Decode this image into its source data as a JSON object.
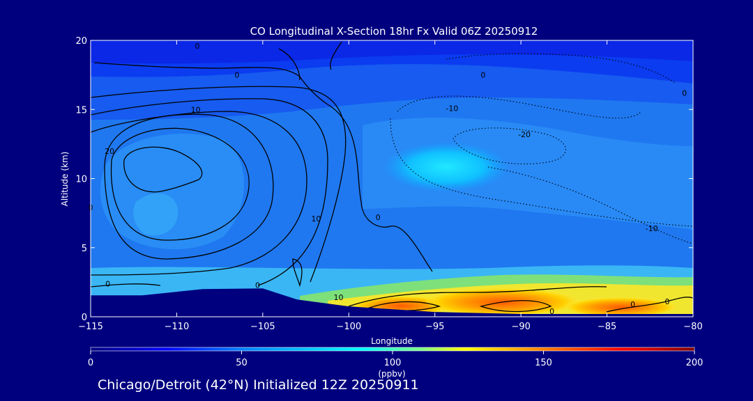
{
  "chart_data": {
    "type": "heatmap",
    "title": "CO Longitudinal X-Section 18hr  Fx Valid 06Z 20250912",
    "xlabel": "Longitude",
    "ylabel": "Altitude (km)",
    "xlim": [
      -115,
      -80
    ],
    "ylim": [
      0,
      20
    ],
    "x_ticks": [
      -115,
      -110,
      -105,
      -100,
      -95,
      -90,
      -85,
      -80
    ],
    "y_ticks": [
      0,
      5,
      10,
      15,
      20
    ],
    "x_tick_labels": [
      "−115",
      "−110",
      "−105",
      "−100",
      "−95",
      "−90",
      "−85",
      "−80"
    ],
    "y_tick_labels": [
      "0",
      "5",
      "10",
      "15",
      "20"
    ],
    "colorbar": {
      "label": "(ppbv)",
      "min": 0,
      "max": 200,
      "ticks": [
        0,
        50,
        100,
        150,
        200
      ],
      "tick_labels": [
        "0",
        "50",
        "100",
        "150",
        "200"
      ],
      "colors": [
        "#00007f",
        "#0000ff",
        "#0080ff",
        "#00ffff",
        "#80ff80",
        "#ffff00",
        "#ff8000",
        "#ff0000",
        "#800000"
      ]
    },
    "field_levels_ppbv": [
      {
        "region": "upper troposphere / stratosphere (y 17-20 km)",
        "value": 35
      },
      {
        "region": "upper troposphere (y 14-17 km)",
        "value": 45
      },
      {
        "region": "mid troposphere background",
        "value": 60
      },
      {
        "region": "western plume core (-113 to -108, 7-12 km)",
        "value": 75
      },
      {
        "region": "central plume (-96 to -88, 9-12 km)",
        "value": 85
      },
      {
        "region": "eastern boundary layer (-95 to -82, 0-2 km)",
        "value": 150
      }
    ],
    "contour_labels": [
      {
        "text": "0",
        "x": -108.8,
        "y": 19.6
      },
      {
        "text": "0",
        "x": -106.5,
        "y": 17.5
      },
      {
        "text": "0",
        "x": -92.2,
        "y": 17.5
      },
      {
        "text": "-10",
        "x": -94.0,
        "y": 15.1
      },
      {
        "text": "10",
        "x": -108.9,
        "y": 15.0
      },
      {
        "text": "-20",
        "x": -89.8,
        "y": 13.2
      },
      {
        "text": "20",
        "x": -113.9,
        "y": 12.0
      },
      {
        "text": "0",
        "x": -115.0,
        "y": 7.9
      },
      {
        "text": "10",
        "x": -101.9,
        "y": 7.1
      },
      {
        "text": "0",
        "x": -98.3,
        "y": 7.2
      },
      {
        "text": "-10",
        "x": -82.4,
        "y": 6.4
      },
      {
        "text": "0",
        "x": -114.0,
        "y": 2.4
      },
      {
        "text": "0",
        "x": -105.3,
        "y": 2.3
      },
      {
        "text": "10",
        "x": -100.6,
        "y": 1.4
      },
      {
        "text": "0",
        "x": -88.2,
        "y": 0.4
      },
      {
        "text": "0",
        "x": -83.5,
        "y": 0.9
      },
      {
        "text": "0",
        "x": -81.5,
        "y": 1.1
      },
      {
        "text": "0",
        "x": -80.5,
        "y": 16.2
      }
    ],
    "solid_contours_are_positive": true,
    "dotted_contours_are_negative": true,
    "terrain_km": [
      {
        "lon": -115.0,
        "alt": 1.55
      },
      {
        "lon": -112.0,
        "alt": 1.55
      },
      {
        "lon": -108.5,
        "alt": 2.0
      },
      {
        "lon": -105.0,
        "alt": 2.05
      },
      {
        "lon": -103.0,
        "alt": 1.25
      },
      {
        "lon": -100.0,
        "alt": 0.75
      },
      {
        "lon": -95.0,
        "alt": 0.35
      },
      {
        "lon": -90.0,
        "alt": 0.2
      },
      {
        "lon": -85.0,
        "alt": 0.2
      },
      {
        "lon": -80.0,
        "alt": 0.2
      }
    ]
  },
  "footer": {
    "text": "Chicago/Detroit (42°N) Initialized 12Z 20250911"
  }
}
